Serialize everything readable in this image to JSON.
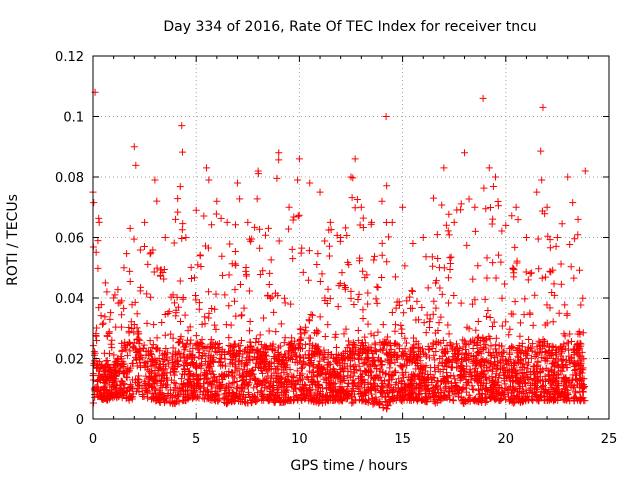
{
  "chart_data": {
    "type": "scatter",
    "title": "Day 334 of 2016, Rate Of TEC Index for receiver tncu",
    "xlabel": "GPS time / hours",
    "ylabel": "ROTI / TECUs",
    "xlim": [
      0,
      25
    ],
    "ylim": [
      0,
      0.12
    ],
    "x_ticks": [
      "0",
      "5",
      "10",
      "15",
      "20",
      "25"
    ],
    "y_ticks": [
      "0",
      "0.02",
      "0.04",
      "0.06",
      "0.08",
      "0.1",
      "0.12"
    ],
    "grid": true,
    "marker": "plus",
    "color": "#ff0000",
    "data_range_x": [
      0,
      23.85
    ],
    "envelope": {
      "x": [
        0,
        0.1,
        0.3,
        0.6,
        1.0,
        1.5,
        1.8,
        2.0,
        2.5,
        3.0,
        3.5,
        4.0,
        4.3,
        4.5,
        5.0,
        5.5,
        6.0,
        6.5,
        7.0,
        7.5,
        8.0,
        8.5,
        9.0,
        9.5,
        10.0,
        10.5,
        11.0,
        11.5,
        12.0,
        12.5,
        12.7,
        13.0,
        13.5,
        14.0,
        14.2,
        14.5,
        15.0,
        15.5,
        16.0,
        16.5,
        17.0,
        17.5,
        18.0,
        18.5,
        18.9,
        19.2,
        19.5,
        20.0,
        20.5,
        21.0,
        21.5,
        21.8,
        22.0,
        22.5,
        23.0,
        23.5,
        23.85
      ],
      "peak": [
        0.075,
        0.108,
        0.065,
        0.045,
        0.04,
        0.05,
        0.063,
        0.09,
        0.065,
        0.079,
        0.06,
        0.066,
        0.097,
        0.06,
        0.069,
        0.083,
        0.072,
        0.065,
        0.078,
        0.065,
        0.082,
        0.063,
        0.088,
        0.07,
        0.086,
        0.078,
        0.075,
        0.065,
        0.06,
        0.08,
        0.086,
        0.07,
        0.065,
        0.072,
        0.1,
        0.065,
        0.07,
        0.058,
        0.06,
        0.073,
        0.083,
        0.065,
        0.088,
        0.07,
        0.106,
        0.083,
        0.08,
        0.064,
        0.07,
        0.06,
        0.075,
        0.103,
        0.07,
        0.06,
        0.08,
        0.066,
        0.082
      ],
      "floor": [
        0.004,
        0.008,
        0.007,
        0.006,
        0.007,
        0.007,
        0.006,
        0.007,
        0.007,
        0.006,
        0.005,
        0.005,
        0.006,
        0.006,
        0.007,
        0.006,
        0.006,
        0.005,
        0.006,
        0.005,
        0.006,
        0.006,
        0.005,
        0.006,
        0.006,
        0.006,
        0.005,
        0.006,
        0.006,
        0.005,
        0.006,
        0.006,
        0.005,
        0.004,
        0.003,
        0.006,
        0.006,
        0.006,
        0.006,
        0.005,
        0.006,
        0.006,
        0.005,
        0.006,
        0.005,
        0.006,
        0.006,
        0.006,
        0.005,
        0.006,
        0.006,
        0.006,
        0.006,
        0.006,
        0.006,
        0.006,
        0.005
      ],
      "typical_high": [
        0.025,
        0.032,
        0.02,
        0.018,
        0.018,
        0.025,
        0.03,
        0.032,
        0.025,
        0.025,
        0.022,
        0.024,
        0.03,
        0.025,
        0.025,
        0.026,
        0.025,
        0.025,
        0.026,
        0.026,
        0.026,
        0.024,
        0.026,
        0.025,
        0.027,
        0.025,
        0.024,
        0.022,
        0.022,
        0.025,
        0.027,
        0.026,
        0.024,
        0.025,
        0.028,
        0.025,
        0.026,
        0.024,
        0.024,
        0.026,
        0.026,
        0.025,
        0.027,
        0.026,
        0.027,
        0.026,
        0.025,
        0.024,
        0.025,
        0.024,
        0.026,
        0.028,
        0.026,
        0.024,
        0.026,
        0.025,
        0.026
      ]
    }
  }
}
